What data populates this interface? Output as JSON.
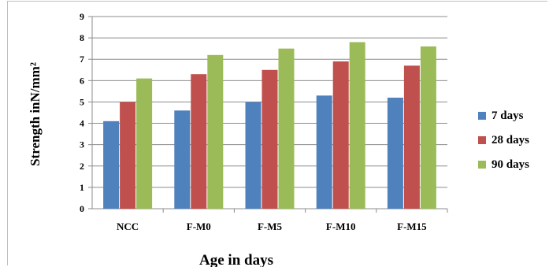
{
  "chart_data": {
    "type": "bar",
    "categories": [
      "NCC",
      "F-M0",
      "F-M5",
      "F-M10",
      "F-M15"
    ],
    "series": [
      {
        "name": "7 days",
        "color": "#4f81bd",
        "values": [
          4.1,
          4.6,
          5.0,
          5.3,
          5.2
        ]
      },
      {
        "name": "28 days",
        "color": "#c0504d",
        "values": [
          5.0,
          6.3,
          6.5,
          6.9,
          6.7
        ]
      },
      {
        "name": "90 days",
        "color": "#9bbb59",
        "values": [
          6.1,
          7.2,
          7.5,
          7.8,
          7.6
        ]
      }
    ],
    "ylim": [
      0,
      9
    ],
    "yticks": [
      "0",
      "1",
      "2",
      "3",
      "4",
      "5",
      "6",
      "7",
      "8",
      "9"
    ],
    "xlabel": "Age in days",
    "ylabel": "Strength inN/mm²",
    "grid": true,
    "legend_position": "right"
  }
}
